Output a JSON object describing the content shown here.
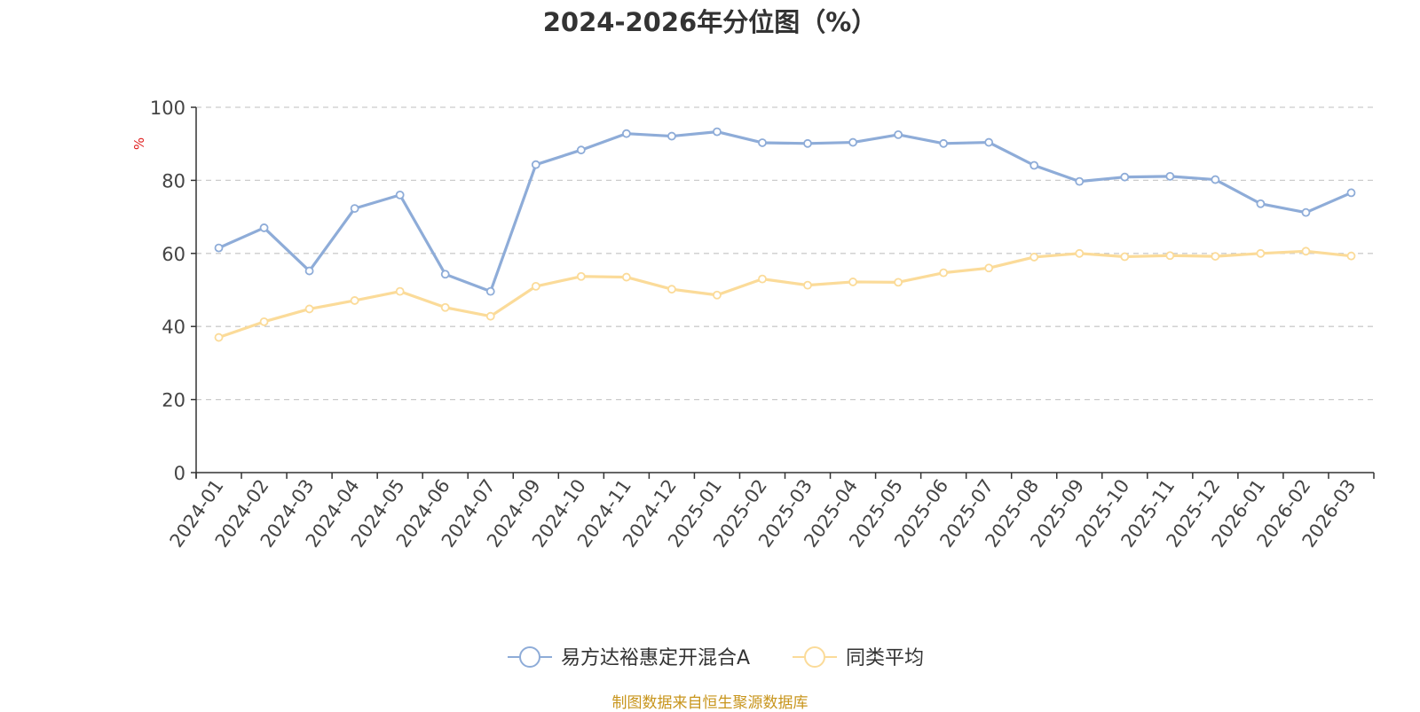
{
  "chart_data": {
    "type": "line",
    "title": "2024-2026年分位图（%）",
    "ylabel": "%",
    "xlabel": "",
    "ylim": [
      0,
      100
    ],
    "yticks": [
      0,
      20,
      40,
      60,
      80,
      100
    ],
    "grid": true,
    "legend_position": "bottom-center",
    "categories": [
      "2024-01",
      "2024-02",
      "2024-03",
      "2024-04",
      "2024-05",
      "2024-06",
      "2024-07",
      "2024-09",
      "2024-10",
      "2024-11",
      "2024-12",
      "2025-01",
      "2025-02",
      "2025-03",
      "2025-04",
      "2025-05",
      "2025-06",
      "2025-07",
      "2025-08",
      "2025-09",
      "2025-10",
      "2025-11",
      "2025-12",
      "2026-01",
      "2026-02",
      "2026-03"
    ],
    "series": [
      {
        "name": "易方达裕惠定开混合A",
        "color": "#8eacd8",
        "values": [
          61.5,
          67.0,
          55.2,
          72.3,
          76.0,
          54.3,
          49.6,
          84.3,
          88.3,
          92.8,
          92.1,
          93.3,
          90.3,
          90.1,
          90.4,
          92.5,
          90.1,
          90.4,
          84.1,
          79.7,
          80.9,
          81.1,
          80.2,
          73.6,
          71.2,
          76.6
        ]
      },
      {
        "name": "同类平均",
        "color": "#fbdb99",
        "values": [
          37.0,
          41.3,
          44.8,
          47.1,
          49.6,
          45.2,
          42.8,
          51.0,
          53.7,
          53.5,
          50.2,
          48.6,
          53.0,
          51.3,
          52.2,
          52.1,
          54.7,
          56.0,
          59.0,
          60.0,
          59.1,
          59.4,
          59.2,
          60.0,
          60.6,
          59.3
        ]
      }
    ]
  },
  "source_text": "制图数据来自恒生聚源数据库",
  "source_color": "#c8951c"
}
